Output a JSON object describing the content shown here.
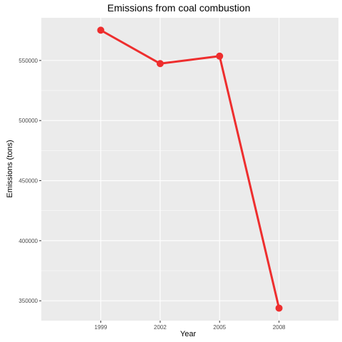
{
  "chart_data": {
    "type": "line",
    "title": "Emissions from coal combustion",
    "xlabel": "Year",
    "ylabel": "Emissions (tons)",
    "x": [
      1999,
      2002,
      2005,
      2008
    ],
    "x_ticks": [
      "1999",
      "2002",
      "2005",
      "2008"
    ],
    "y_ticks": [
      350000,
      400000,
      450000,
      500000,
      550000
    ],
    "y_tick_labels": [
      "350000",
      "400000",
      "450000",
      "500000",
      "550000"
    ],
    "xlim": [
      1996,
      2011
    ],
    "ylim": [
      333500,
      585500
    ],
    "grid": true,
    "series": [
      {
        "values": [
          575200,
          547400,
          553600,
          343900
        ],
        "color": "#ee2e2e"
      }
    ],
    "panel_color": "#ebebeb",
    "grid_color": "#ffffff"
  }
}
